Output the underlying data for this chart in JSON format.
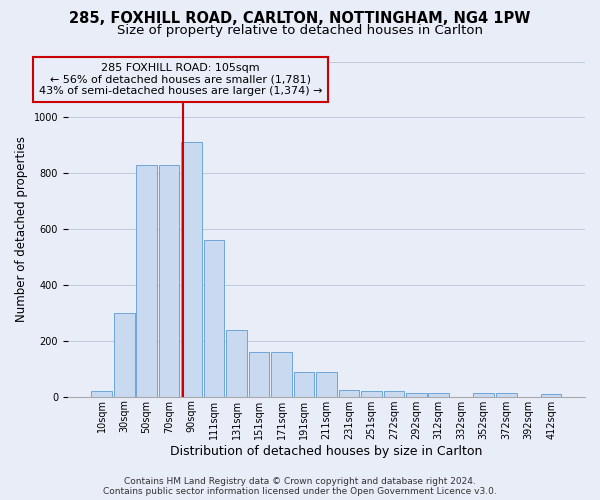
{
  "title": "285, FOXHILL ROAD, CARLTON, NOTTINGHAM, NG4 1PW",
  "subtitle": "Size of property relative to detached houses in Carlton",
  "xlabel": "Distribution of detached houses by size in Carlton",
  "ylabel": "Number of detached properties",
  "footer_line1": "Contains HM Land Registry data © Crown copyright and database right 2024.",
  "footer_line2": "Contains public sector information licensed under the Open Government Licence v3.0.",
  "bar_labels": [
    "10sqm",
    "30sqm",
    "50sqm",
    "70sqm",
    "90sqm",
    "111sqm",
    "131sqm",
    "151sqm",
    "171sqm",
    "191sqm",
    "211sqm",
    "231sqm",
    "251sqm",
    "272sqm",
    "292sqm",
    "312sqm",
    "332sqm",
    "352sqm",
    "372sqm",
    "392sqm",
    "412sqm"
  ],
  "bar_values": [
    20,
    300,
    830,
    830,
    910,
    560,
    240,
    160,
    160,
    90,
    90,
    25,
    20,
    20,
    12,
    12,
    0,
    12,
    12,
    0,
    10
  ],
  "bar_color": "#c9d9f0",
  "bar_edge_color": "#6ea6d8",
  "annotation_line1": "285 FOXHILL ROAD: 105sqm",
  "annotation_line2": "← 56% of detached houses are smaller (1,781)",
  "annotation_line3": "43% of semi-detached houses are larger (1,374) →",
  "vline_x_index": 3.62,
  "vline_color": "#cc0000",
  "ann_box_color": "#cc0000",
  "ylim_max": 1200,
  "yticks": [
    0,
    200,
    400,
    600,
    800,
    1000,
    1200
  ],
  "grid_color": "#c0c8dc",
  "bg_color": "#e8edf8",
  "title_fontsize": 10.5,
  "subtitle_fontsize": 9.5,
  "ylabel_fontsize": 8.5,
  "xlabel_fontsize": 9,
  "tick_fontsize": 7,
  "ann_fontsize": 8,
  "footer_fontsize": 6.5
}
